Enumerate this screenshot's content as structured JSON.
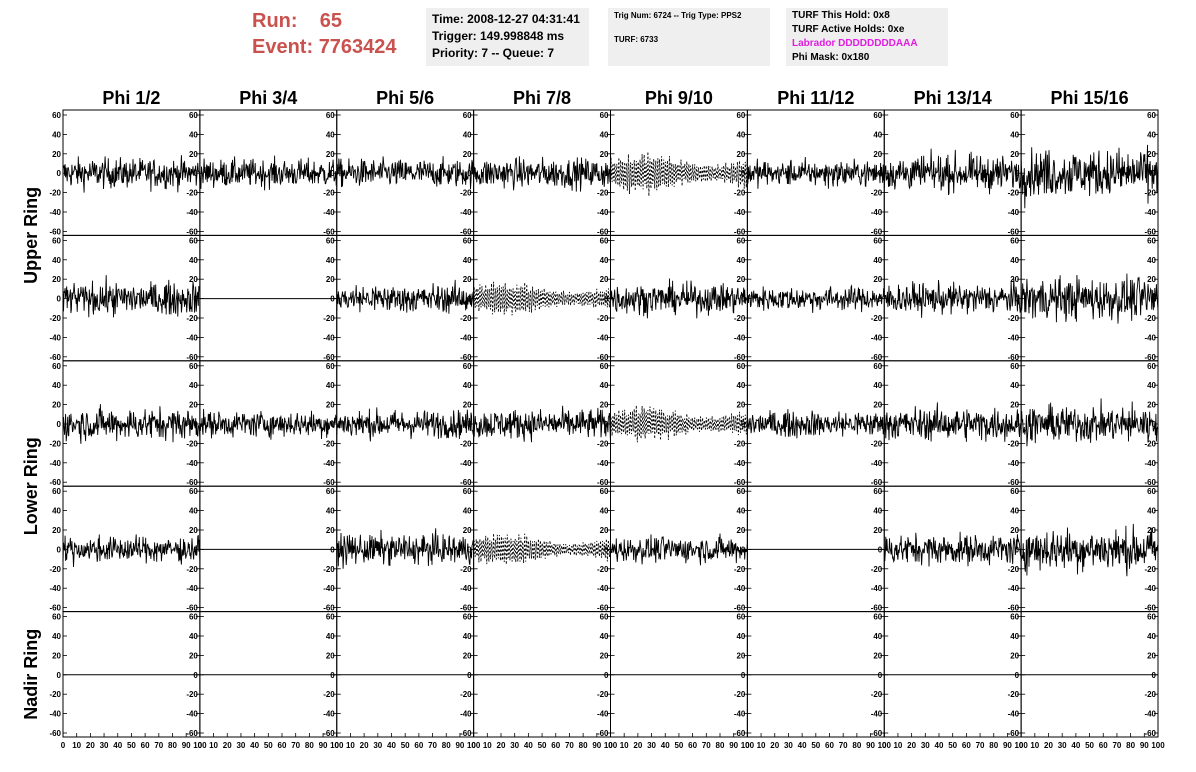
{
  "run": {
    "run_label": "Run:",
    "run_value": "65",
    "event_label": "Event:",
    "event_value": "7763424"
  },
  "timing": {
    "time": "Time: 2008-12-27 04:31:41",
    "trigger": "Trigger: 149.998848 ms",
    "priority": "Priority: 7 -- Queue: 7"
  },
  "trig": {
    "line1": "Trig Num: 6724 -- Trig Type: PPS2",
    "line2": "TURF: 6733"
  },
  "turf": {
    "hold": "TURF This Hold: 0x8",
    "active": "TURF Active Holds: 0xe",
    "labrador": "Labrador DDDDDDDDAAA",
    "phimask": "Phi Mask: 0x180",
    "labrador_color": "#e11de1"
  },
  "chart_data": {
    "type": "line",
    "columns": [
      "Phi 1/2",
      "Phi 3/4",
      "Phi 5/6",
      "Phi 7/8",
      "Phi 9/10",
      "Phi 11/12",
      "Phi 13/14",
      "Phi 15/16"
    ],
    "ring_labels": [
      {
        "text": "Upper Ring",
        "rows": [
          0,
          1
        ]
      },
      {
        "text": "Lower Ring",
        "rows": [
          2,
          3
        ]
      },
      {
        "text": "Nadir Ring",
        "rows": [
          4,
          4
        ]
      }
    ],
    "xlim": [
      0,
      100
    ],
    "ylim": [
      -60,
      60
    ],
    "x_ticks": [
      "0",
      "10",
      "20",
      "30",
      "40",
      "50",
      "60",
      "70",
      "80",
      "90",
      "100"
    ],
    "y_ticks": [
      "60",
      "40",
      "20",
      "0",
      "-20",
      "-40",
      "-60"
    ],
    "panels": [
      [
        "noise:14",
        "noise:13",
        "noise:13",
        "noise:14",
        "dashed:20",
        "noise:12",
        "noise:16",
        "noise:22"
      ],
      [
        "noise:15",
        "flat",
        "noise:13",
        "dashed:16",
        "noise:14",
        "noise:11",
        "noise:14",
        "noise:20"
      ],
      [
        "noise:15",
        "noise:12",
        "noise:13",
        "noise:14",
        "dashed:17",
        "noise:12",
        "noise:15",
        "noise:17"
      ],
      [
        "noise:12",
        "flat",
        "noise:14",
        "dashed:15",
        "noise:12",
        "flat",
        "noise:14",
        "noise:20"
      ],
      [
        "flat",
        "flat",
        "flat",
        "flat",
        "flat",
        "flat",
        "flat",
        "flat"
      ]
    ]
  }
}
